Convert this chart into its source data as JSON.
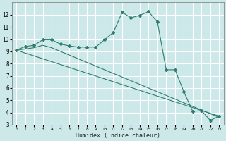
{
  "xlabel": "Humidex (Indice chaleur)",
  "bg_color": "#cce8e8",
  "grid_color": "#ffffff",
  "line_color": "#2e7d6e",
  "xlim": [
    -0.5,
    23.5
  ],
  "ylim": [
    3,
    13
  ],
  "xticks": [
    0,
    1,
    2,
    3,
    4,
    5,
    6,
    7,
    8,
    9,
    10,
    11,
    12,
    13,
    14,
    15,
    16,
    17,
    18,
    19,
    20,
    21,
    22,
    23
  ],
  "yticks": [
    3,
    4,
    5,
    6,
    7,
    8,
    9,
    10,
    11,
    12
  ],
  "series1": [
    [
      0,
      9.1
    ],
    [
      1,
      9.4
    ],
    [
      2,
      9.5
    ],
    [
      3,
      9.95
    ],
    [
      4,
      9.95
    ],
    [
      5,
      9.6
    ],
    [
      6,
      9.45
    ],
    [
      7,
      9.35
    ],
    [
      8,
      9.35
    ],
    [
      9,
      9.35
    ],
    [
      10,
      9.95
    ],
    [
      11,
      10.55
    ],
    [
      12,
      12.2
    ],
    [
      13,
      11.75
    ],
    [
      14,
      11.95
    ],
    [
      15,
      12.25
    ],
    [
      16,
      11.4
    ],
    [
      17,
      7.5
    ],
    [
      18,
      7.5
    ],
    [
      19,
      5.7
    ],
    [
      20,
      4.1
    ],
    [
      21,
      4.15
    ],
    [
      22,
      3.35
    ],
    [
      23,
      3.7
    ]
  ],
  "series2": [
    [
      0,
      9.1
    ],
    [
      1,
      9.2
    ],
    [
      2,
      9.3
    ],
    [
      3,
      9.5
    ],
    [
      4,
      9.3
    ],
    [
      5,
      9.0
    ],
    [
      6,
      8.7
    ],
    [
      7,
      8.4
    ],
    [
      8,
      8.1
    ],
    [
      9,
      7.8
    ],
    [
      10,
      7.5
    ],
    [
      11,
      7.2
    ],
    [
      12,
      6.9
    ],
    [
      13,
      6.6
    ],
    [
      14,
      6.3
    ],
    [
      15,
      6.0
    ],
    [
      16,
      5.7
    ],
    [
      17,
      5.4
    ],
    [
      18,
      5.1
    ],
    [
      19,
      4.8
    ],
    [
      20,
      4.5
    ],
    [
      21,
      4.2
    ],
    [
      22,
      3.9
    ],
    [
      23,
      3.6
    ]
  ],
  "series3": [
    [
      0,
      9.1
    ],
    [
      23,
      3.7
    ]
  ]
}
